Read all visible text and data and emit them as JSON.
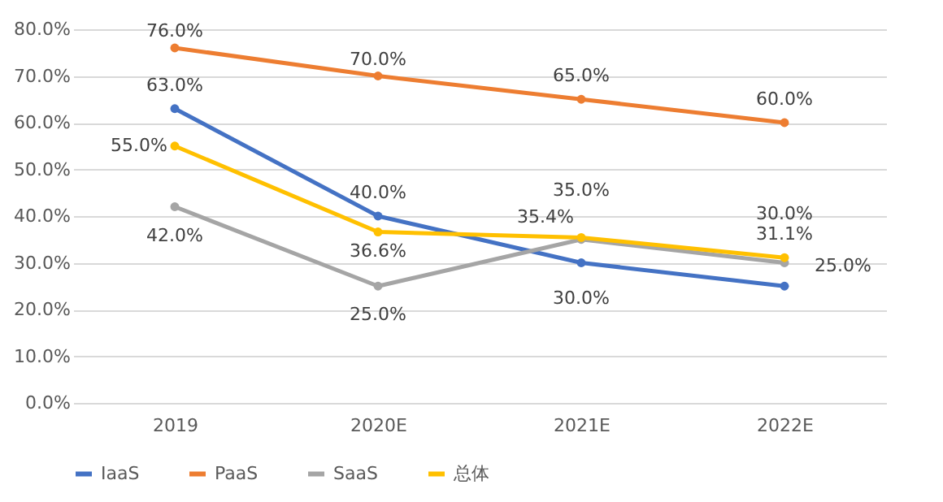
{
  "chart_data": {
    "type": "line",
    "categories": [
      "2019",
      "2020E",
      "2021E",
      "2022E"
    ],
    "series": [
      {
        "name": "IaaS",
        "color": "#4472c4",
        "values": [
          63,
          40,
          30,
          25
        ],
        "value_labels": [
          "63.0%",
          "40.0%",
          "30.0%",
          "25.0%"
        ]
      },
      {
        "name": "PaaS",
        "color": "#ed7d31",
        "values": [
          76,
          70,
          65,
          60
        ],
        "value_labels": [
          "76.0%",
          "70.0%",
          "65.0%",
          "60.0%"
        ]
      },
      {
        "name": "SaaS",
        "color": "#a5a5a5",
        "values": [
          42,
          25,
          35,
          30
        ],
        "value_labels": [
          "42.0%",
          "25.0%",
          "35.0%",
          "30.0%"
        ]
      },
      {
        "name": "总体",
        "color": "#ffc000",
        "values": [
          55,
          36.6,
          35.4,
          31.1
        ],
        "value_labels": [
          "55.0%",
          "36.6%",
          "35.4%",
          "31.1%"
        ]
      }
    ],
    "ylim": [
      0,
      80
    ],
    "yticks": [
      {
        "value": 0,
        "label": "0.0%"
      },
      {
        "value": 10,
        "label": "10.0%"
      },
      {
        "value": 20,
        "label": "20.0%"
      },
      {
        "value": 30,
        "label": "30.0%"
      },
      {
        "value": 40,
        "label": "40.0%"
      },
      {
        "value": 50,
        "label": "50.0%"
      },
      {
        "value": 60,
        "label": "60.0%"
      },
      {
        "value": 70,
        "label": "70.0%"
      },
      {
        "value": 80,
        "label": "80.0%"
      }
    ],
    "grid": "y",
    "legend": "bottom",
    "marker": "circle",
    "line_style": "solid"
  }
}
